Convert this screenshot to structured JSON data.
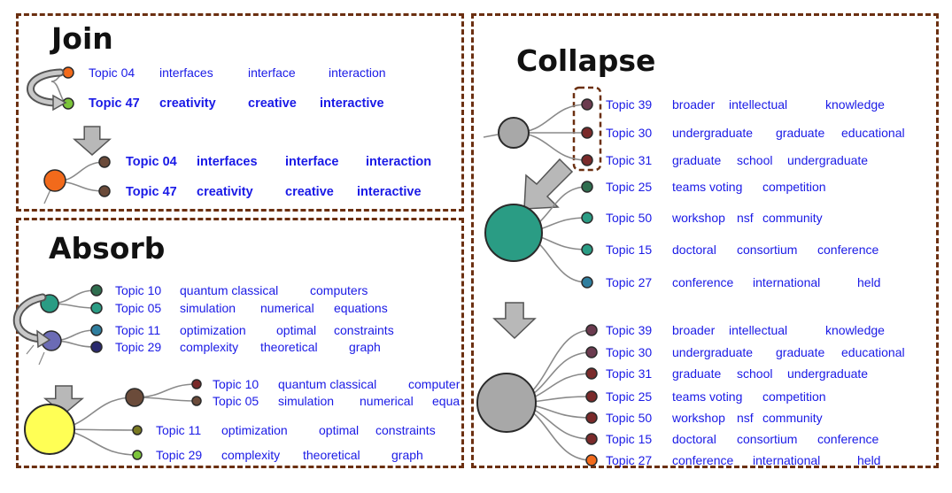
{
  "colors": {
    "border": "#6b2f10",
    "text": "#1a1ae6",
    "orange": "#f26a1b",
    "green": "#7cc43a",
    "brown": "#6b4b3a",
    "teal": "#2a9c84",
    "purple": "#6b6bb5",
    "yellow": "#ffff55",
    "grey": "#a8a8a8",
    "plum": "#6b3b4f",
    "maroon": "#7a2a2a",
    "darkgreen": "#2f6e4f",
    "steel": "#2f7e9e",
    "olive": "#7a7a22",
    "navy": "#2a2a6e"
  },
  "join": {
    "title": "Join",
    "before": [
      {
        "id": "Topic 04",
        "words": [
          "interfaces",
          "interface",
          "interaction"
        ]
      },
      {
        "id": "Topic 47",
        "words": [
          "creativity",
          "creative",
          "interactive"
        ]
      }
    ],
    "after": [
      {
        "id": "Topic 04",
        "words": [
          "interfaces",
          "interface",
          "interaction"
        ]
      },
      {
        "id": "Topic 47",
        "words": [
          "creativity",
          "creative",
          "interactive"
        ]
      }
    ]
  },
  "absorb": {
    "title": "Absorb",
    "before": [
      {
        "id": "Topic 10",
        "words": [
          "quantum classical",
          "computers"
        ]
      },
      {
        "id": "Topic 05",
        "words": [
          "simulation",
          "numerical",
          "equations"
        ]
      },
      {
        "id": "Topic 11",
        "words": [
          "optimization",
          "optimal",
          "constraints"
        ]
      },
      {
        "id": "Topic 29",
        "words": [
          "complexity",
          "theoretical",
          "graph"
        ]
      }
    ],
    "after": [
      {
        "id": "Topic 10",
        "words": [
          "quantum classical",
          "computer"
        ]
      },
      {
        "id": "Topic 05",
        "words": [
          "simulation",
          "numerical",
          "equa"
        ]
      },
      {
        "id": "Topic 11",
        "words": [
          "optimization",
          "optimal",
          "constraints"
        ]
      },
      {
        "id": "Topic 29",
        "words": [
          "complexity",
          "theoretical",
          "graph"
        ]
      }
    ]
  },
  "collapse": {
    "title": "Collapse",
    "before": [
      {
        "id": "Topic 39",
        "words": [
          "broader",
          "intellectual",
          "knowledge"
        ]
      },
      {
        "id": "Topic 30",
        "words": [
          "undergraduate",
          "graduate",
          "educational"
        ]
      },
      {
        "id": "Topic 31",
        "words": [
          "graduate",
          "school",
          "undergraduate"
        ]
      },
      {
        "id": "Topic 25",
        "words": [
          "teams voting",
          "competition"
        ]
      },
      {
        "id": "Topic 50",
        "words": [
          "workshop",
          "nsf",
          "community"
        ]
      },
      {
        "id": "Topic 15",
        "words": [
          "doctoral",
          "consortium",
          "conference"
        ]
      },
      {
        "id": "Topic 27",
        "words": [
          "conference",
          "international",
          "held"
        ]
      }
    ],
    "after": [
      {
        "id": "Topic 39",
        "words": [
          "broader",
          "intellectual",
          "knowledge"
        ]
      },
      {
        "id": "Topic 30",
        "words": [
          "undergraduate",
          "graduate",
          "educational"
        ]
      },
      {
        "id": "Topic 31",
        "words": [
          "graduate",
          "school",
          "undergraduate"
        ]
      },
      {
        "id": "Topic 25",
        "words": [
          "teams voting",
          "competition"
        ]
      },
      {
        "id": "Topic 50",
        "words": [
          "workshop",
          "nsf",
          "community"
        ]
      },
      {
        "id": "Topic 15",
        "words": [
          "doctoral",
          "consortium",
          "conference"
        ]
      },
      {
        "id": "Topic 27",
        "words": [
          "conference",
          "international",
          "held"
        ]
      }
    ]
  }
}
